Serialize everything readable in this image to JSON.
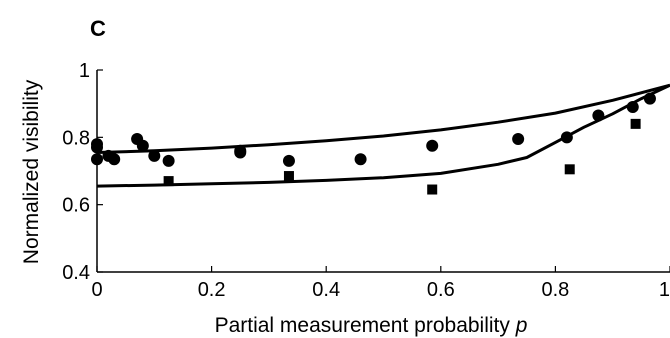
{
  "chart_data": {
    "type": "scatter",
    "panel_label": "C",
    "xlabel": "Partial measurement probability",
    "xlabel_var": "p",
    "ylabel": "Normalized visibility",
    "xlim": [
      0,
      1
    ],
    "ylim": [
      0.4,
      1.0
    ],
    "x_ticks": [
      "0",
      "0.2",
      "0.4",
      "0.6",
      "0.8",
      "1"
    ],
    "y_ticks": [
      "0.4",
      "0.6",
      "0.8",
      "1"
    ],
    "grid": false,
    "series": [
      {
        "marker": "circle",
        "points": [
          [
            0.0,
            0.735
          ],
          [
            0.0,
            0.77
          ],
          [
            0.0,
            0.78
          ],
          [
            0.02,
            0.745
          ],
          [
            0.03,
            0.735
          ],
          [
            0.07,
            0.795
          ],
          [
            0.08,
            0.775
          ],
          [
            0.1,
            0.745
          ],
          [
            0.125,
            0.73
          ],
          [
            0.25,
            0.76
          ],
          [
            0.25,
            0.755
          ],
          [
            0.335,
            0.73
          ],
          [
            0.46,
            0.735
          ],
          [
            0.585,
            0.775
          ],
          [
            0.735,
            0.795
          ],
          [
            0.82,
            0.8
          ],
          [
            0.875,
            0.865
          ],
          [
            0.935,
            0.89
          ],
          [
            0.965,
            0.915
          ]
        ]
      },
      {
        "marker": "square",
        "points": [
          [
            0.125,
            0.67
          ],
          [
            0.335,
            0.685
          ],
          [
            0.585,
            0.645
          ],
          [
            0.825,
            0.705
          ],
          [
            0.94,
            0.84
          ]
        ]
      },
      {
        "marker": "line",
        "points": [
          [
            0.0,
            0.755
          ],
          [
            0.1,
            0.76
          ],
          [
            0.2,
            0.768
          ],
          [
            0.3,
            0.778
          ],
          [
            0.4,
            0.79
          ],
          [
            0.5,
            0.804
          ],
          [
            0.6,
            0.822
          ],
          [
            0.7,
            0.845
          ],
          [
            0.8,
            0.872
          ],
          [
            0.9,
            0.91
          ],
          [
            1.0,
            0.955
          ]
        ]
      },
      {
        "marker": "line",
        "points": [
          [
            0.0,
            0.655
          ],
          [
            0.1,
            0.658
          ],
          [
            0.2,
            0.662
          ],
          [
            0.3,
            0.666
          ],
          [
            0.4,
            0.672
          ],
          [
            0.5,
            0.68
          ],
          [
            0.6,
            0.693
          ],
          [
            0.7,
            0.72
          ],
          [
            0.75,
            0.74
          ],
          [
            0.8,
            0.785
          ],
          [
            0.85,
            0.83
          ],
          [
            0.9,
            0.87
          ],
          [
            0.95,
            0.915
          ],
          [
            1.0,
            0.955
          ]
        ]
      }
    ]
  }
}
